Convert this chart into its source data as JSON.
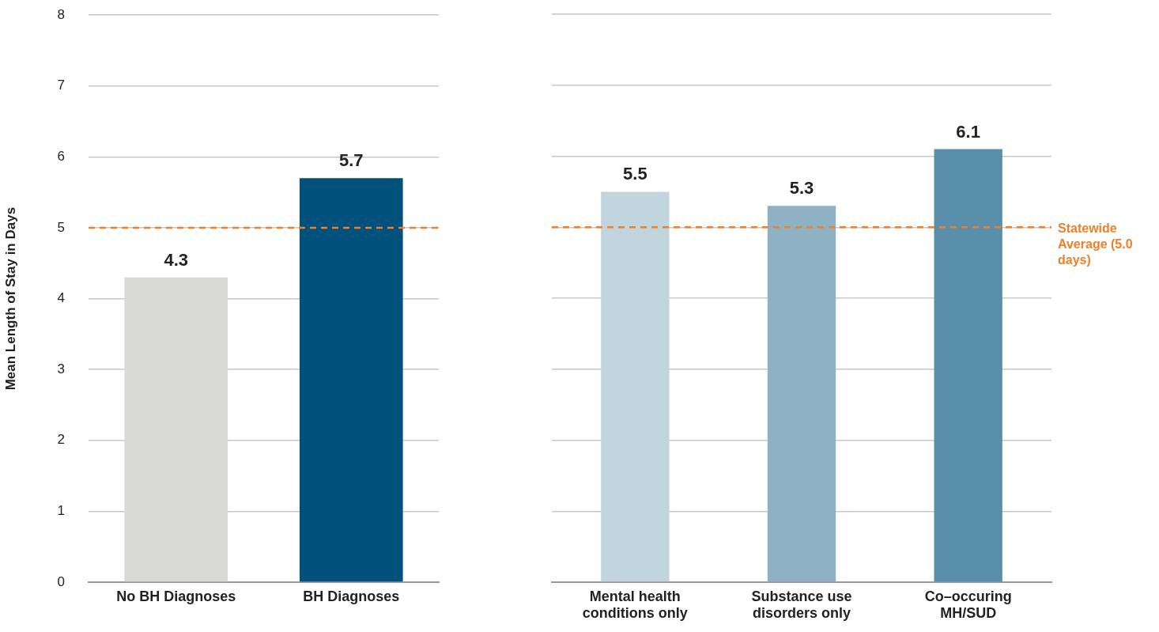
{
  "chart_data": [
    {
      "type": "bar",
      "ylabel": "Mean Length of Stay in Days",
      "categories": [
        "No BH Diagnoses",
        "BH Diagnoses"
      ],
      "values": [
        4.3,
        5.7
      ],
      "colors": [
        "#d9dad7",
        "#00527c"
      ],
      "ylim": [
        0,
        8
      ],
      "yticks": [
        0,
        1,
        2,
        3,
        4,
        5,
        6,
        7,
        8
      ],
      "grid": "y",
      "data_labels": true,
      "legend": false,
      "ref_lines": [
        {
          "axis": "y",
          "value": 5,
          "color": "#f07f26",
          "line_style": "dashed"
        }
      ]
    },
    {
      "type": "bar",
      "categories": [
        "Mental health conditions only",
        "Substance use disorders only",
        "Co–occuring MH/SUD"
      ],
      "values": [
        5.5,
        5.3,
        6.1
      ],
      "colors": [
        "#c1d5df",
        "#8fb1c4",
        "#5a8fab"
      ],
      "ylim": [
        0,
        8
      ],
      "yticks": [
        0,
        1,
        2,
        3,
        4,
        5,
        6,
        7,
        8
      ],
      "grid": "y",
      "data_labels": true,
      "legend": false,
      "tick_labels": "x",
      "ref_lines": [
        {
          "axis": "y",
          "value": 5,
          "label": "Statewide Average (5.0 days)",
          "color": "#f07f26",
          "line_style": "dashed"
        }
      ]
    }
  ]
}
